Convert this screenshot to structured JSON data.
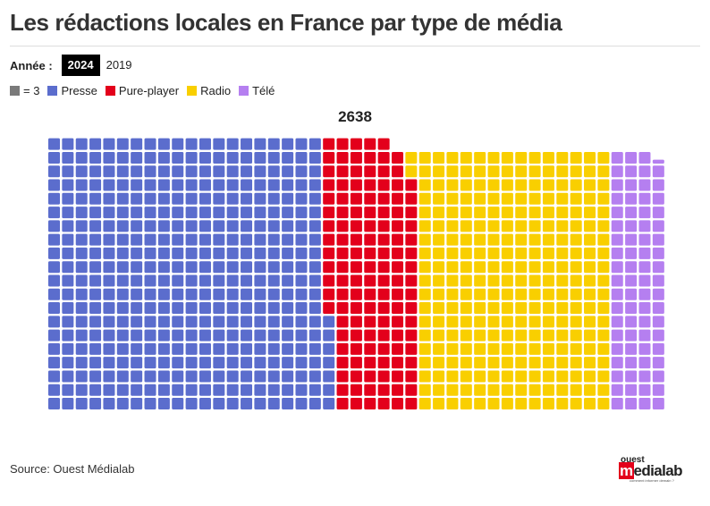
{
  "title": "Les rédactions locales en France par type de média",
  "year_selector": {
    "label": "Année :",
    "options": [
      {
        "label": "2024",
        "active": true
      },
      {
        "label": "2019",
        "active": false
      }
    ]
  },
  "legend": {
    "unit": {
      "label": "= 3",
      "color": "#7a7a7a"
    },
    "items": [
      {
        "label": "Presse",
        "color": "#5b6dcd"
      },
      {
        "label": "Pure-player",
        "color": "#e3001b"
      },
      {
        "label": "Radio",
        "color": "#f9cf00"
      },
      {
        "label": "Télé",
        "color": "#b57ff0"
      }
    ]
  },
  "source": "Source: Ouest Médialab",
  "logo": {
    "top": "ouest",
    "m": "m",
    "rest": "edialab",
    "tagline": "comment informer demain ?"
  },
  "chart_data": {
    "type": "waffle",
    "title": "Les rédactions locales en France par type de média",
    "year": "2024",
    "total": 2638,
    "total_label": "2638",
    "unit_value": 3,
    "columns": 45,
    "series": [
      {
        "name": "Presse",
        "value": 1221,
        "color": "#5b6dcd"
      },
      {
        "name": "Pure-player",
        "value": 387,
        "color": "#e3001b"
      },
      {
        "name": "Radio",
        "value": 804,
        "color": "#f9cf00"
      },
      {
        "name": "Télé",
        "value": 226,
        "color": "#b57ff0"
      }
    ]
  }
}
